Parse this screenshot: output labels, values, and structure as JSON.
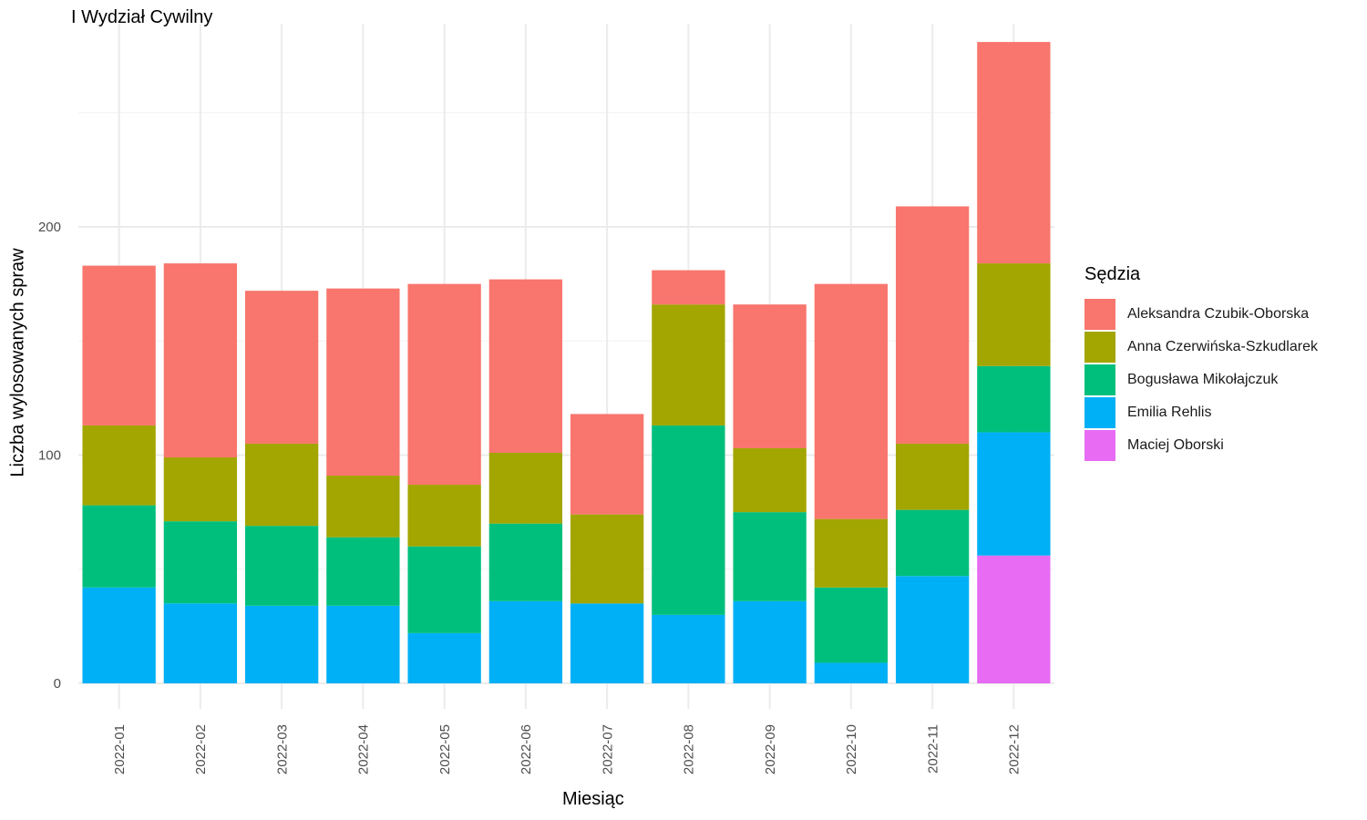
{
  "chart_data": {
    "type": "bar",
    "stacked": true,
    "title": "I Wydział Cywilny",
    "xlabel": "Miesiąc",
    "ylabel": "Liczba wylosowanych spraw",
    "ylim": [
      0,
      285
    ],
    "yticks": [
      0,
      100,
      200
    ],
    "grid": true,
    "legend_position": "right",
    "legend_title": "Sędzia",
    "categories": [
      "2022-01",
      "2022-02",
      "2022-03",
      "2022-04",
      "2022-05",
      "2022-06",
      "2022-07",
      "2022-08",
      "2022-09",
      "2022-10",
      "2022-11",
      "2022-12"
    ],
    "series": [
      {
        "name": "Aleksandra Czubik-Oborska",
        "color": "#F8766D",
        "values": [
          70,
          85,
          67,
          82,
          88,
          76,
          44,
          15,
          63,
          103,
          104,
          97
        ]
      },
      {
        "name": "Anna Czerwińska-Szkudlarek",
        "color": "#A3A500",
        "values": [
          35,
          28,
          36,
          27,
          27,
          31,
          39,
          53,
          28,
          30,
          29,
          45
        ]
      },
      {
        "name": "Bogusława Mikołajczuk",
        "color": "#00BF7D",
        "values": [
          36,
          36,
          35,
          30,
          38,
          34,
          0,
          83,
          39,
          33,
          29,
          29
        ]
      },
      {
        "name": "Emilia Rehlis",
        "color": "#00B0F6",
        "values": [
          42,
          35,
          34,
          34,
          22,
          36,
          35,
          30,
          36,
          9,
          47,
          54
        ]
      },
      {
        "name": "Maciej Oborski",
        "color": "#E76BF3",
        "values": [
          0,
          0,
          0,
          0,
          0,
          0,
          0,
          0,
          0,
          0,
          0,
          56
        ]
      }
    ]
  }
}
